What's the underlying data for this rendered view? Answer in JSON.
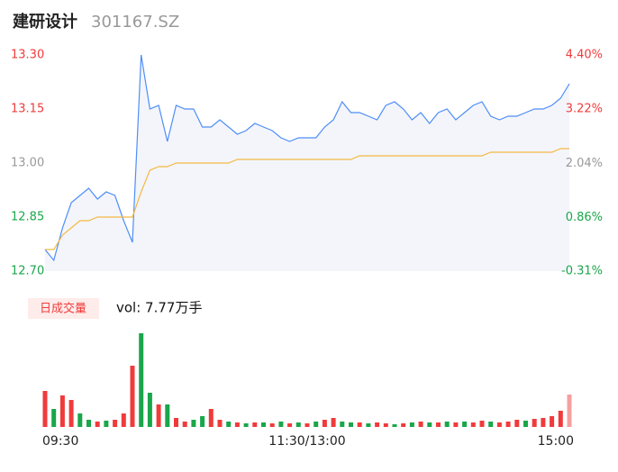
{
  "header": {
    "name": "建研设计",
    "code": "301167.SZ"
  },
  "chart_data": [
    {
      "type": "line",
      "ylim": [
        12.7,
        13.3
      ],
      "yticks": [
        {
          "value": 13.3,
          "label": "13.30"
        },
        {
          "value": 13.15,
          "label": "13.15"
        },
        {
          "value": 13.0,
          "label": "13.00"
        },
        {
          "value": 12.85,
          "label": "12.85"
        },
        {
          "value": 12.7,
          "label": "12.70"
        }
      ],
      "ytick_colors": [
        "#f03b3b",
        "#f03b3b",
        "#999999",
        "#1aa64a",
        "#1aa64a"
      ],
      "y2lim": [
        -0.31,
        4.4
      ],
      "y2ticks": [
        {
          "value": 4.4,
          "label": "4.40%"
        },
        {
          "value": 3.22,
          "label": "3.22%"
        },
        {
          "value": 2.04,
          "label": "2.04%"
        },
        {
          "value": 0.86,
          "label": "0.86%"
        },
        {
          "value": -0.31,
          "label": "-0.31%"
        }
      ],
      "y2tick_colors": [
        "#f03b3b",
        "#f03b3b",
        "#999999",
        "#1aa64a",
        "#1aa64a"
      ],
      "series": [
        {
          "color": "#4f8ef7",
          "values": [
            12.76,
            12.73,
            12.82,
            12.89,
            12.91,
            12.93,
            12.9,
            12.92,
            12.91,
            12.84,
            12.78,
            13.3,
            13.15,
            13.16,
            13.06,
            13.16,
            13.15,
            13.15,
            13.1,
            13.1,
            13.12,
            13.1,
            13.08,
            13.09,
            13.11,
            13.1,
            13.09,
            13.07,
            13.06,
            13.07,
            13.07,
            13.07,
            13.1,
            13.12,
            13.17,
            13.14,
            13.14,
            13.13,
            13.12,
            13.16,
            13.17,
            13.15,
            13.12,
            13.14,
            13.11,
            13.14,
            13.15,
            13.12,
            13.14,
            13.16,
            13.17,
            13.13,
            13.12,
            13.13,
            13.13,
            13.14,
            13.15,
            13.15,
            13.16,
            13.18,
            13.22
          ]
        },
        {
          "color": "#f5b942",
          "values": [
            12.76,
            12.76,
            12.8,
            12.82,
            12.84,
            12.84,
            12.85,
            12.85,
            12.85,
            12.85,
            12.85,
            12.92,
            12.98,
            12.99,
            12.99,
            13.0,
            13.0,
            13.0,
            13.0,
            13.0,
            13.0,
            13.0,
            13.01,
            13.01,
            13.01,
            13.01,
            13.01,
            13.01,
            13.01,
            13.01,
            13.01,
            13.01,
            13.01,
            13.01,
            13.01,
            13.01,
            13.02,
            13.02,
            13.02,
            13.02,
            13.02,
            13.02,
            13.02,
            13.02,
            13.02,
            13.02,
            13.02,
            13.02,
            13.02,
            13.02,
            13.02,
            13.03,
            13.03,
            13.03,
            13.03,
            13.03,
            13.03,
            13.03,
            13.03,
            13.04,
            13.04
          ]
        }
      ]
    },
    {
      "type": "bar",
      "title": "日成交量",
      "subtitle": "vol: 7.77万手",
      "ylim": [
        0,
        110
      ],
      "categories": [
        "09:30",
        null,
        null,
        null,
        null,
        null,
        null,
        null,
        null,
        null,
        null,
        null,
        null,
        null,
        null,
        null,
        null,
        null,
        null,
        null,
        null,
        null,
        null,
        null,
        null,
        null,
        null,
        null,
        null,
        null,
        "11:30/13:00",
        null,
        null,
        null,
        null,
        null,
        null,
        null,
        null,
        null,
        null,
        null,
        null,
        null,
        null,
        null,
        null,
        null,
        null,
        null,
        null,
        null,
        null,
        null,
        null,
        null,
        null,
        null,
        null,
        null,
        "15:00"
      ],
      "values": [
        40,
        20,
        35,
        30,
        15,
        8,
        6,
        7,
        8,
        15,
        68,
        104,
        38,
        25,
        25,
        10,
        6,
        8,
        12,
        20,
        8,
        6,
        5,
        4,
        5,
        5,
        4,
        6,
        4,
        5,
        4,
        6,
        8,
        10,
        6,
        5,
        5,
        4,
        5,
        4,
        3,
        4,
        5,
        6,
        5,
        5,
        6,
        5,
        6,
        5,
        7,
        6,
        5,
        6,
        8,
        7,
        9,
        10,
        12,
        18,
        36
      ],
      "colors": [
        "#f03b3b",
        "#1aa64a",
        "#f03b3b",
        "#f03b3b",
        "#1aa64a",
        "#1aa64a",
        "#f03b3b",
        "#1aa64a",
        "#f03b3b",
        "#f03b3b",
        "#f03b3b",
        "#1aa64a",
        "#1aa64a",
        "#f03b3b",
        "#1aa64a",
        "#f03b3b",
        "#f03b3b",
        "#1aa64a",
        "#1aa64a",
        "#f03b3b",
        "#f03b3b",
        "#1aa64a",
        "#f03b3b",
        "#1aa64a",
        "#f03b3b",
        "#1aa64a",
        "#f03b3b",
        "#1aa64a",
        "#f03b3b",
        "#1aa64a",
        "#f03b3b",
        "#1aa64a",
        "#f03b3b",
        "#f03b3b",
        "#1aa64a",
        "#1aa64a",
        "#f03b3b",
        "#1aa64a",
        "#f03b3b",
        "#f03b3b",
        "#1aa64a",
        "#f03b3b",
        "#1aa64a",
        "#f03b3b",
        "#1aa64a",
        "#f03b3b",
        "#1aa64a",
        "#f03b3b",
        "#1aa64a",
        "#f03b3b",
        "#f03b3b",
        "#1aa64a",
        "#f03b3b",
        "#f03b3b",
        "#f03b3b",
        "#1aa64a",
        "#f03b3b",
        "#f03b3b",
        "#f03b3b",
        "#f03b3b",
        "#f4a0a0"
      ]
    }
  ]
}
